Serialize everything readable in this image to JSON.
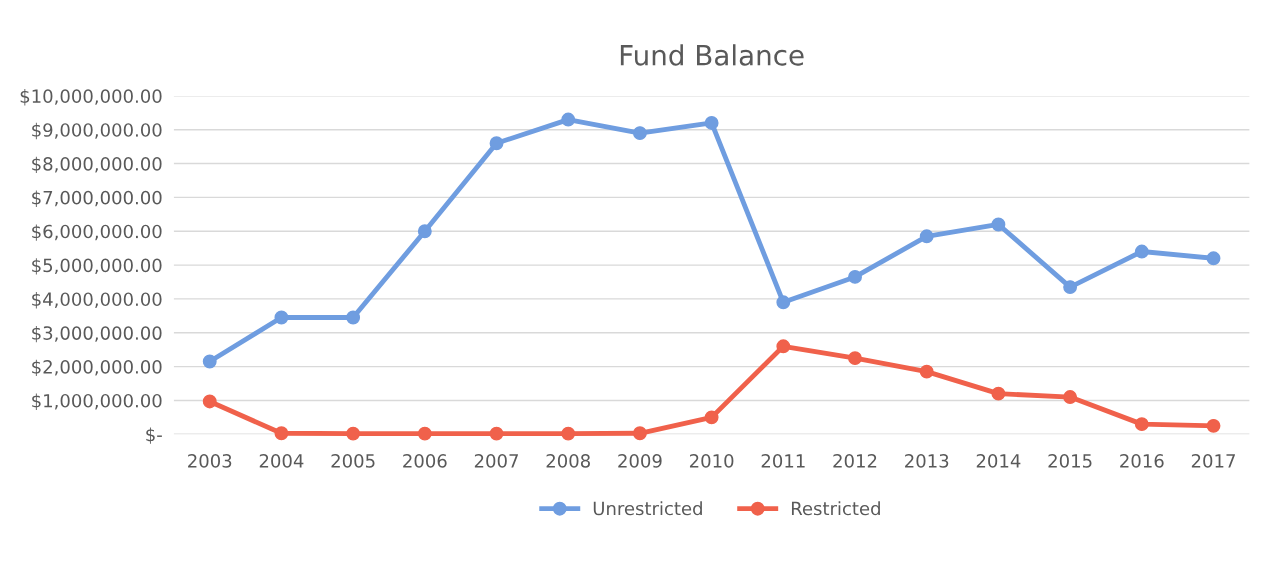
{
  "chart_data": {
    "type": "line",
    "title": "Fund Balance",
    "categories": [
      "2003",
      "2004",
      "2005",
      "2006",
      "2007",
      "2008",
      "2009",
      "2010",
      "2011",
      "2012",
      "2013",
      "2014",
      "2015",
      "2016",
      "2017"
    ],
    "series": [
      {
        "name": "Unrestricted",
        "color": "#6f9de0",
        "values": [
          2150000,
          3450000,
          3450000,
          6000000,
          8600000,
          9300000,
          8900000,
          9200000,
          3900000,
          4650000,
          5850000,
          6200000,
          4350000,
          5400000,
          5200000
        ]
      },
      {
        "name": "Restricted",
        "color": "#f0614b",
        "values": [
          970000,
          30000,
          20000,
          20000,
          20000,
          20000,
          30000,
          500000,
          2600000,
          2250000,
          1850000,
          1200000,
          1100000,
          300000,
          250000
        ]
      }
    ],
    "ylim": [
      0,
      10000000
    ],
    "yticks": [
      {
        "value": 0,
        "label": "$-"
      },
      {
        "value": 1000000,
        "label": "$1,000,000.00"
      },
      {
        "value": 2000000,
        "label": "$2,000,000.00"
      },
      {
        "value": 3000000,
        "label": "$3,000,000.00"
      },
      {
        "value": 4000000,
        "label": "$4,000,000.00"
      },
      {
        "value": 5000000,
        "label": "$5,000,000.00"
      },
      {
        "value": 6000000,
        "label": "$6,000,000.00"
      },
      {
        "value": 7000000,
        "label": "$7,000,000.00"
      },
      {
        "value": 8000000,
        "label": "$8,000,000.00"
      },
      {
        "value": 9000000,
        "label": "$9,000,000.00"
      },
      {
        "value": 10000000,
        "label": "$10,000,000.00"
      }
    ],
    "grid": "y",
    "legend": "bottom",
    "marker": "circle",
    "line_style": "solid"
  }
}
